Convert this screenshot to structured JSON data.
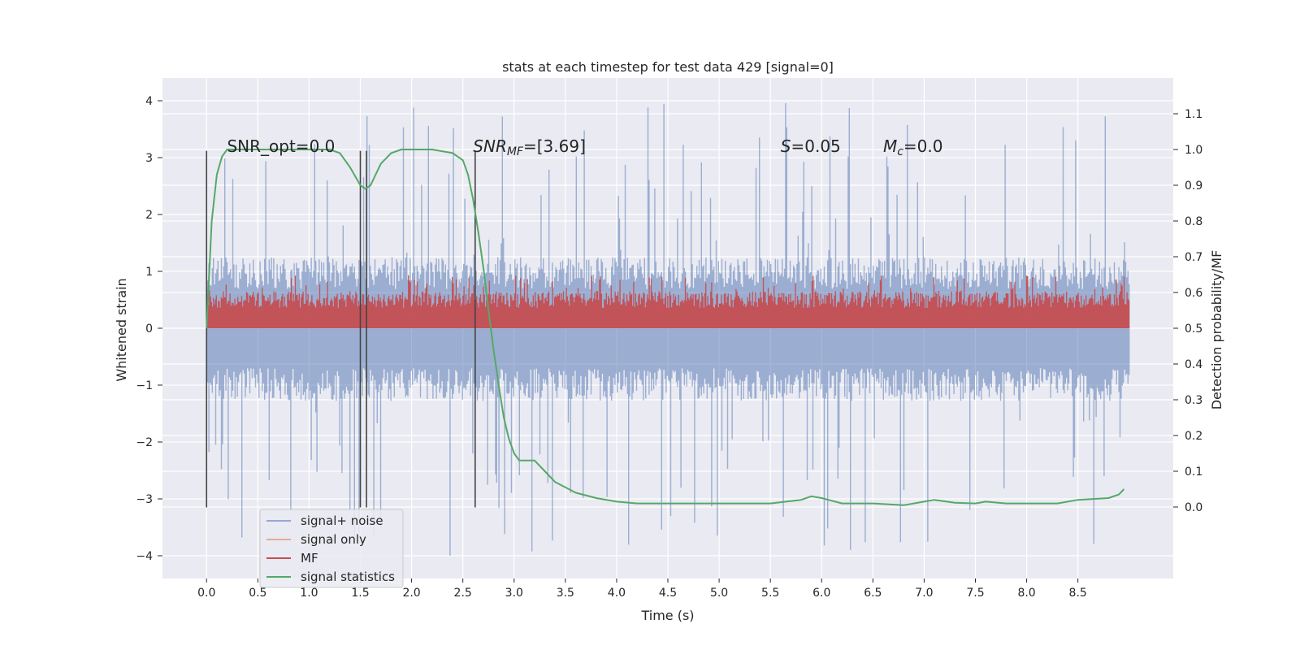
{
  "chart_data": {
    "type": "line",
    "title": "stats at each timestep for test data 429 [signal=0]",
    "xlabel": "Time (s)",
    "ylabel": "Whitened strain",
    "ylabel_right": "Detection probability/MF",
    "xlim": [
      -0.43,
      9.43
    ],
    "ylim": [
      -4.4,
      4.4
    ],
    "ylim_right": [
      -0.2,
      1.2
    ],
    "x_ticks": [
      0.0,
      0.5,
      1.0,
      1.5,
      2.0,
      2.5,
      3.0,
      3.5,
      4.0,
      4.5,
      5.0,
      5.5,
      6.0,
      6.5,
      7.0,
      7.5,
      8.0,
      8.5
    ],
    "x_tick_labels": [
      "0.0",
      "0.5",
      "1.0",
      "1.5",
      "2.0",
      "2.5",
      "3.0",
      "3.5",
      "4.0",
      "4.5",
      "5.0",
      "5.5",
      "6.0",
      "6.5",
      "7.0",
      "7.5",
      "8.0",
      "8.5"
    ],
    "y_ticks": [
      4,
      3,
      2,
      1,
      0,
      -1,
      -2,
      -3,
      -4
    ],
    "y_tick_labels": [
      "4",
      "3",
      "2",
      "1",
      "0",
      "−1",
      "−2",
      "−3",
      "−4"
    ],
    "y_right_ticks": [
      1.1,
      1.0,
      0.9,
      0.8,
      0.7,
      0.6,
      0.5,
      0.4,
      0.3,
      0.2,
      0.1,
      0.0
    ],
    "y_right_tick_labels": [
      "1.1",
      "1.0",
      "0.9",
      "0.8",
      "0.7",
      "0.6",
      "0.5",
      "0.4",
      "0.3",
      "0.2",
      "0.1",
      "0.0"
    ],
    "grid": true,
    "legend_position": "bottom-left",
    "series": [
      {
        "name": "signal+ noise",
        "color": "#4c72b0",
        "kind": "noise",
        "x_range": [
          0.0,
          9.0
        ],
        "band": [
          -1.28,
          1.25
        ],
        "min": -4.0,
        "max": 4.0
      },
      {
        "name": "signal only",
        "color": "#dd8452",
        "kind": "flat",
        "values": []
      },
      {
        "name": "MF",
        "color": "#c44e52",
        "kind": "noise",
        "x_range": [
          0.0,
          9.0
        ],
        "band": [
          0.0,
          0.65
        ],
        "min": 0.0,
        "max": 0.95
      },
      {
        "name": "signal statistics",
        "color": "#55a868",
        "axis": "right",
        "x": [
          0.0,
          0.05,
          0.1,
          0.15,
          0.2,
          0.3,
          0.5,
          0.8,
          1.0,
          1.2,
          1.3,
          1.4,
          1.5,
          1.55,
          1.6,
          1.7,
          1.8,
          1.9,
          2.0,
          2.2,
          2.4,
          2.5,
          2.55,
          2.6,
          2.65,
          2.7,
          2.75,
          2.8,
          2.85,
          2.9,
          2.95,
          3.0,
          3.05,
          3.1,
          3.2,
          3.3,
          3.4,
          3.5,
          3.6,
          3.8,
          4.0,
          4.2,
          4.5,
          5.0,
          5.5,
          5.8,
          5.9,
          6.0,
          6.2,
          6.5,
          6.8,
          7.0,
          7.1,
          7.3,
          7.5,
          7.6,
          7.8,
          8.0,
          8.3,
          8.5,
          8.8,
          8.9,
          8.95
        ],
        "y": [
          0.5,
          0.8,
          0.93,
          0.98,
          1.0,
          1.0,
          1.0,
          1.0,
          1.0,
          1.0,
          0.99,
          0.95,
          0.9,
          0.89,
          0.9,
          0.96,
          0.99,
          1.0,
          1.0,
          1.0,
          0.99,
          0.97,
          0.93,
          0.86,
          0.77,
          0.67,
          0.55,
          0.44,
          0.34,
          0.25,
          0.19,
          0.15,
          0.13,
          0.13,
          0.13,
          0.1,
          0.07,
          0.055,
          0.04,
          0.025,
          0.015,
          0.01,
          0.01,
          0.01,
          0.01,
          0.02,
          0.03,
          0.025,
          0.01,
          0.01,
          0.005,
          0.015,
          0.02,
          0.012,
          0.01,
          0.015,
          0.01,
          0.01,
          0.01,
          0.02,
          0.025,
          0.035,
          0.05
        ]
      }
    ],
    "vlines": [
      0.0,
      1.5,
      1.56,
      2.62
    ],
    "vline_range": [
      -3.15,
      3.12
    ],
    "annotations": [
      {
        "text": "SNR_opt=0.0",
        "x": 0.2,
        "y": 3.1
      },
      {
        "text": "SNR",
        "sub": "MF",
        "suffix": "=[3.69]",
        "italic": true,
        "x": 2.6,
        "y": 3.1
      },
      {
        "text": "S",
        "suffix": "=0.05",
        "italic": true,
        "x": 5.6,
        "y": 3.1
      },
      {
        "text": "M",
        "sub": "c",
        "suffix": "=0.0",
        "italic": true,
        "x": 6.6,
        "y": 3.1
      }
    ],
    "axis_bg": "#eaeaf2",
    "grid_color": "#ffffff",
    "vline_color": "#444444"
  }
}
